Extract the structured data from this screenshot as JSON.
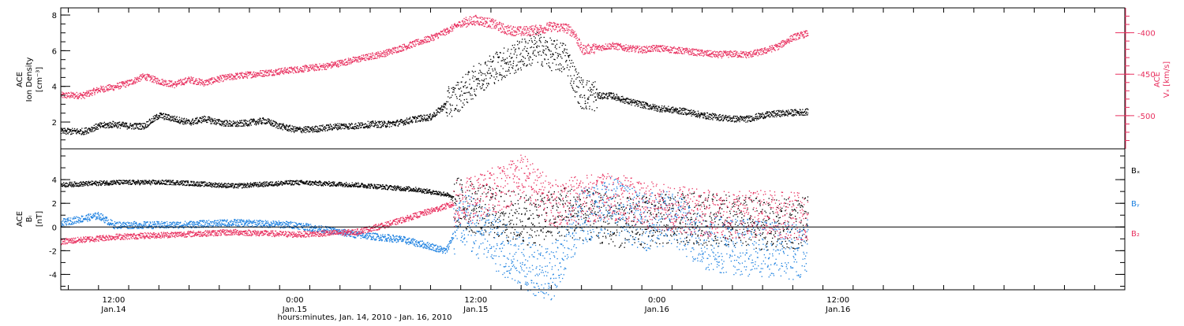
{
  "colors": {
    "ink": "#000000",
    "pink": "#e8305f",
    "blue": "#1a7fe0"
  },
  "x_axis": {
    "title": "hours:minutes, Jan. 14, 2010 - Jan. 16, 2010",
    "range_hours": [
      8.5,
      79
    ],
    "major_ticks": [
      {
        "hours": 12,
        "time": "12:00",
        "day": "Jan.14"
      },
      {
        "hours": 24,
        "time": "0:00",
        "day": "Jan.15"
      },
      {
        "hours": 36,
        "time": "12:00",
        "day": "Jan.15"
      },
      {
        "hours": 48,
        "time": "0:00",
        "day": "Jan.16"
      },
      {
        "hours": 60,
        "time": "12:00",
        "day": "Jan.16"
      }
    ]
  },
  "chart_data": [
    {
      "type": "scatter",
      "panel": "top",
      "ylabel_lines": [
        "ACE",
        "Ion Density"
      ],
      "ylabel_units": "[cm⁻³]",
      "ylim": [
        0.5,
        8.4
      ],
      "yticks": [
        "2",
        "4",
        "6",
        "8"
      ],
      "right_axis": {
        "label_lines": [
          "ACE",
          "Vₓ [km/s]"
        ],
        "ylim": [
          -540,
          -370
        ],
        "yticks": [
          "-400",
          "-450",
          "-500"
        ]
      },
      "series": [
        {
          "color_key": "ink",
          "axis": "left",
          "points": [
            [
              8.5,
              1.5
            ],
            [
              10,
              1.5
            ],
            [
              11,
              1.8
            ],
            [
              12,
              1.9
            ],
            [
              13,
              1.8
            ],
            [
              14,
              1.8
            ],
            [
              15,
              2.4
            ],
            [
              16,
              2.2
            ],
            [
              17,
              2.0
            ],
            [
              18,
              2.2
            ],
            [
              19,
              2.0
            ],
            [
              20,
              1.9
            ],
            [
              21,
              2.0
            ],
            [
              22,
              2.1
            ],
            [
              23,
              1.8
            ],
            [
              24,
              1.6
            ],
            [
              25,
              1.6
            ],
            [
              26,
              1.7
            ],
            [
              27,
              1.8
            ],
            [
              28,
              1.8
            ],
            [
              29,
              1.9
            ],
            [
              30,
              1.9
            ],
            [
              31,
              2.0
            ],
            [
              32,
              2.2
            ],
            [
              33,
              2.3
            ],
            [
              34,
              3.0
            ],
            [
              35,
              3.6
            ],
            [
              36,
              4.4
            ],
            [
              37,
              5.0
            ],
            [
              38,
              5.4
            ],
            [
              39,
              5.8
            ],
            [
              40,
              6.2
            ],
            [
              41,
              5.8
            ],
            [
              42,
              5.6
            ],
            [
              42.5,
              4.4
            ],
            [
              43,
              3.6
            ],
            [
              44,
              3.5
            ],
            [
              45,
              3.5
            ],
            [
              46,
              3.2
            ],
            [
              47,
              3.0
            ],
            [
              48,
              2.8
            ],
            [
              49,
              2.7
            ],
            [
              50,
              2.6
            ],
            [
              51,
              2.4
            ],
            [
              52,
              2.3
            ],
            [
              53,
              2.2
            ],
            [
              54,
              2.2
            ],
            [
              55,
              2.4
            ],
            [
              56,
              2.5
            ],
            [
              58,
              2.6
            ]
          ]
        },
        {
          "color_key": "pink",
          "axis": "right",
          "points": [
            [
              8.5,
              -475
            ],
            [
              10,
              -475
            ],
            [
              11,
              -468
            ],
            [
              12,
              -465
            ],
            [
              13,
              -460
            ],
            [
              14,
              -452
            ],
            [
              15,
              -458
            ],
            [
              16,
              -462
            ],
            [
              17,
              -456
            ],
            [
              18,
              -460
            ],
            [
              19,
              -455
            ],
            [
              20,
              -452
            ],
            [
              21,
              -450
            ],
            [
              22,
              -448
            ],
            [
              23,
              -446
            ],
            [
              24,
              -444
            ],
            [
              25,
              -442
            ],
            [
              26,
              -440
            ],
            [
              27,
              -436
            ],
            [
              28,
              -432
            ],
            [
              29,
              -428
            ],
            [
              30,
              -424
            ],
            [
              31,
              -418
            ],
            [
              32,
              -412
            ],
            [
              33,
              -406
            ],
            [
              34,
              -398
            ],
            [
              35,
              -388
            ],
            [
              36,
              -384
            ],
            [
              37,
              -388
            ],
            [
              38,
              -396
            ],
            [
              39,
              -398
            ],
            [
              40,
              -396
            ],
            [
              41,
              -392
            ],
            [
              42,
              -394
            ],
            [
              42.5,
              -400
            ],
            [
              43,
              -420
            ],
            [
              44,
              -418
            ],
            [
              45,
              -415
            ],
            [
              46,
              -418
            ],
            [
              47,
              -420
            ],
            [
              48,
              -418
            ],
            [
              49,
              -420
            ],
            [
              50,
              -422
            ],
            [
              51,
              -424
            ],
            [
              52,
              -426
            ],
            [
              53,
              -425
            ],
            [
              54,
              -426
            ],
            [
              55,
              -422
            ],
            [
              56,
              -416
            ],
            [
              57,
              -405
            ],
            [
              58,
              -400
            ]
          ]
        }
      ]
    },
    {
      "type": "scatter",
      "panel": "bottom",
      "ylabel_lines": [
        "ACE",
        "Bᵢ"
      ],
      "ylabel_units": "[nT]",
      "ylim": [
        -5.3,
        6.6
      ],
      "yticks": [
        "4",
        "2",
        "0",
        "-2",
        "-4"
      ],
      "zero_line": 0,
      "legend": [
        "Bₓ",
        "Bᵧ",
        "B₂"
      ],
      "series": [
        {
          "name": "Bₓ",
          "color_key": "ink",
          "profile": "steady-then-turbulent",
          "points": [
            [
              8.5,
              3.6
            ],
            [
              12,
              3.8
            ],
            [
              16,
              3.8
            ],
            [
              20,
              3.5
            ],
            [
              24,
              3.8
            ],
            [
              28,
              3.6
            ],
            [
              32,
              3.2
            ],
            [
              34,
              2.8
            ],
            [
              35,
              2.0
            ],
            [
              36,
              1.6
            ],
            [
              38,
              1.0
            ],
            [
              40,
              0.6
            ],
            [
              42,
              1.4
            ],
            [
              44,
              0.8
            ],
            [
              46,
              0.4
            ],
            [
              48,
              0.6
            ],
            [
              50,
              0.8
            ],
            [
              52,
              0.6
            ],
            [
              54,
              0.4
            ],
            [
              56,
              0.2
            ],
            [
              58,
              0.4
            ]
          ]
        },
        {
          "name": "Bᵧ",
          "color_key": "blue",
          "profile": "quiet-then-turbulent",
          "points": [
            [
              8.5,
              0.4
            ],
            [
              11,
              1.0
            ],
            [
              12,
              0.2
            ],
            [
              16,
              0.2
            ],
            [
              20,
              0.4
            ],
            [
              24,
              0.2
            ],
            [
              28,
              -0.6
            ],
            [
              31,
              -1.0
            ],
            [
              33,
              -1.6
            ],
            [
              34,
              -2.0
            ],
            [
              35,
              0.8
            ],
            [
              37,
              -1.0
            ],
            [
              39,
              -3.0
            ],
            [
              41,
              -3.8
            ],
            [
              43,
              1.0
            ],
            [
              45,
              2.0
            ],
            [
              47,
              0.4
            ],
            [
              49,
              0.8
            ],
            [
              51,
              -1.2
            ],
            [
              53,
              -1.6
            ],
            [
              55,
              -1.8
            ],
            [
              57,
              -2.0
            ],
            [
              58,
              -1.6
            ]
          ]
        },
        {
          "name": "B₂",
          "color_key": "pink",
          "profile": "quiet-then-turbulent",
          "points": [
            [
              8.5,
              -1.2
            ],
            [
              12,
              -0.8
            ],
            [
              16,
              -0.6
            ],
            [
              20,
              -0.4
            ],
            [
              24,
              -0.6
            ],
            [
              28,
              -0.4
            ],
            [
              30,
              0.2
            ],
            [
              32,
              1.0
            ],
            [
              34,
              1.8
            ],
            [
              36,
              2.4
            ],
            [
              38,
              3.6
            ],
            [
              39,
              4.4
            ],
            [
              41,
              2.0
            ],
            [
              43,
              2.4
            ],
            [
              45,
              2.6
            ],
            [
              47,
              2.0
            ],
            [
              49,
              1.6
            ],
            [
              51,
              1.2
            ],
            [
              53,
              1.0
            ],
            [
              55,
              1.2
            ],
            [
              57,
              1.0
            ],
            [
              58,
              0.8
            ]
          ]
        }
      ]
    }
  ]
}
